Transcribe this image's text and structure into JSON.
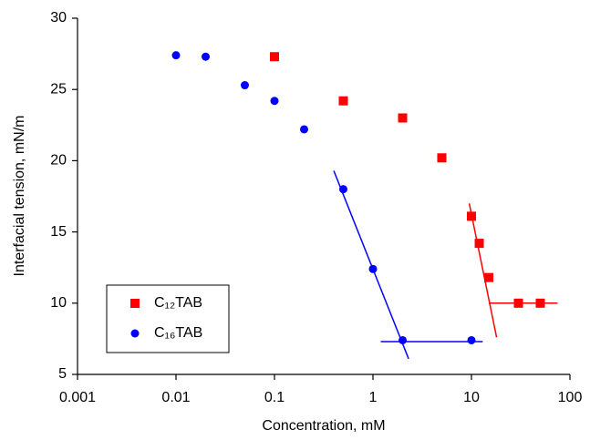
{
  "chart_data": {
    "type": "scatter",
    "xlabel": "Concentration, mM",
    "ylabel": "Interfacial tension, mN/m",
    "xscale": "log",
    "xlim": [
      0.001,
      100
    ],
    "xticks": [
      0.001,
      0.01,
      0.1,
      1,
      10,
      100
    ],
    "ylim": [
      5,
      30
    ],
    "yticks": [
      5,
      10,
      15,
      20,
      25,
      30
    ],
    "legend": "lower left",
    "series": [
      {
        "name": "C₁₂TAB",
        "color": "#ff0000",
        "marker": "square",
        "x": [
          0.1,
          0.5,
          2,
          5,
          10,
          12,
          15,
          30,
          50
        ],
        "values": [
          27.3,
          24.2,
          23.0,
          20.2,
          16.1,
          14.2,
          11.8,
          10.0,
          10.0
        ]
      },
      {
        "name": "C₁₆TAB",
        "color": "#0000ff",
        "marker": "circle",
        "x": [
          0.01,
          0.02,
          0.05,
          0.1,
          0.2,
          0.5,
          1,
          2,
          10
        ],
        "values": [
          27.4,
          27.3,
          25.3,
          24.2,
          22.2,
          18.0,
          12.4,
          7.4,
          7.4
        ]
      }
    ],
    "trend_lines": [
      {
        "color": "#ff0000",
        "x": [
          9.5,
          18
        ],
        "values": [
          17.0,
          7.6
        ]
      },
      {
        "color": "#ff0000",
        "x": [
          15,
          75
        ],
        "values": [
          10.0,
          10.0
        ]
      },
      {
        "color": "#0000ff",
        "x": [
          0.4,
          2.3
        ],
        "values": [
          19.3,
          6.1
        ]
      },
      {
        "color": "#0000ff",
        "x": [
          1.2,
          13
        ],
        "values": [
          7.3,
          7.3
        ]
      }
    ]
  }
}
